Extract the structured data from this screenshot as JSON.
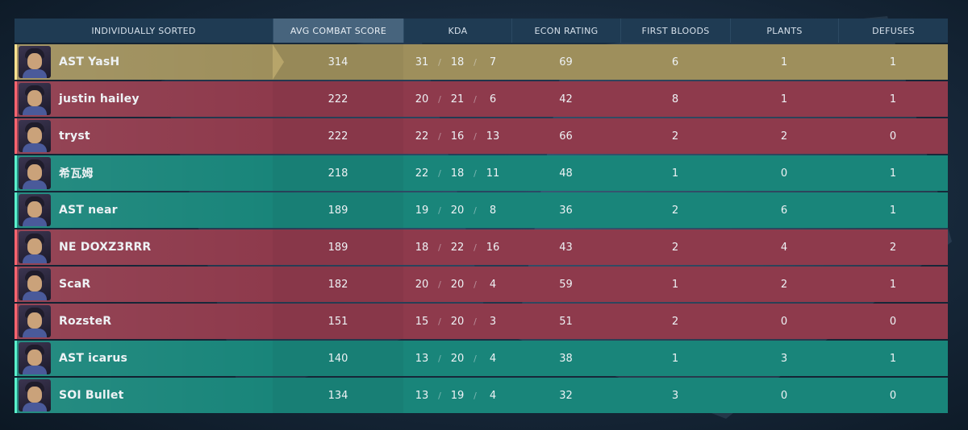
{
  "header": {
    "name": "INDIVIDUALLY SORTED",
    "acs": "AVG COMBAT SCORE",
    "kda": "KDA",
    "econ": "ECON RATING",
    "fb": "FIRST BLOODS",
    "plants": "PLANTS",
    "defuses": "DEFUSES"
  },
  "kda_sep": "/",
  "colors": {
    "red": "#8e3a4c",
    "green": "#19857a",
    "gold": "#9e8f5c",
    "header": "#1f3b53"
  },
  "players": [
    {
      "name": "AST YasH",
      "team": "gold",
      "acs": "314",
      "k": "31",
      "d": "18",
      "a": "7",
      "econ": "69",
      "fb": "6",
      "plants": "1",
      "defuses": "1",
      "avatar": "agent-portrait-icon"
    },
    {
      "name": "justin hailey",
      "team": "red",
      "acs": "222",
      "k": "20",
      "d": "21",
      "a": "6",
      "econ": "42",
      "fb": "8",
      "plants": "1",
      "defuses": "1",
      "avatar": "agent-portrait-icon"
    },
    {
      "name": "tryst",
      "team": "red",
      "acs": "222",
      "k": "22",
      "d": "16",
      "a": "13",
      "econ": "66",
      "fb": "2",
      "plants": "2",
      "defuses": "0",
      "avatar": "agent-portrait-icon"
    },
    {
      "name": "希瓦姆",
      "team": "green",
      "acs": "218",
      "k": "22",
      "d": "18",
      "a": "11",
      "econ": "48",
      "fb": "1",
      "plants": "0",
      "defuses": "1",
      "avatar": "agent-portrait-icon"
    },
    {
      "name": "AST near",
      "team": "green",
      "acs": "189",
      "k": "19",
      "d": "20",
      "a": "8",
      "econ": "36",
      "fb": "2",
      "plants": "6",
      "defuses": "1",
      "avatar": "agent-portrait-icon"
    },
    {
      "name": "NE DOXZ3RRR",
      "team": "red",
      "acs": "189",
      "k": "18",
      "d": "22",
      "a": "16",
      "econ": "43",
      "fb": "2",
      "plants": "4",
      "defuses": "2",
      "avatar": "agent-portrait-icon"
    },
    {
      "name": "ScaR",
      "team": "red",
      "acs": "182",
      "k": "20",
      "d": "20",
      "a": "4",
      "econ": "59",
      "fb": "1",
      "plants": "2",
      "defuses": "1",
      "avatar": "agent-portrait-icon"
    },
    {
      "name": "RozsteR",
      "team": "red",
      "acs": "151",
      "k": "15",
      "d": "20",
      "a": "3",
      "econ": "51",
      "fb": "2",
      "plants": "0",
      "defuses": "0",
      "avatar": "agent-portrait-icon"
    },
    {
      "name": "AST icarus",
      "team": "green",
      "acs": "140",
      "k": "13",
      "d": "20",
      "a": "4",
      "econ": "38",
      "fb": "1",
      "plants": "3",
      "defuses": "1",
      "avatar": "agent-portrait-icon"
    },
    {
      "name": "SOI Bullet",
      "team": "green",
      "acs": "134",
      "k": "13",
      "d": "19",
      "a": "4",
      "econ": "32",
      "fb": "3",
      "plants": "0",
      "defuses": "0",
      "avatar": "agent-portrait-icon"
    }
  ]
}
